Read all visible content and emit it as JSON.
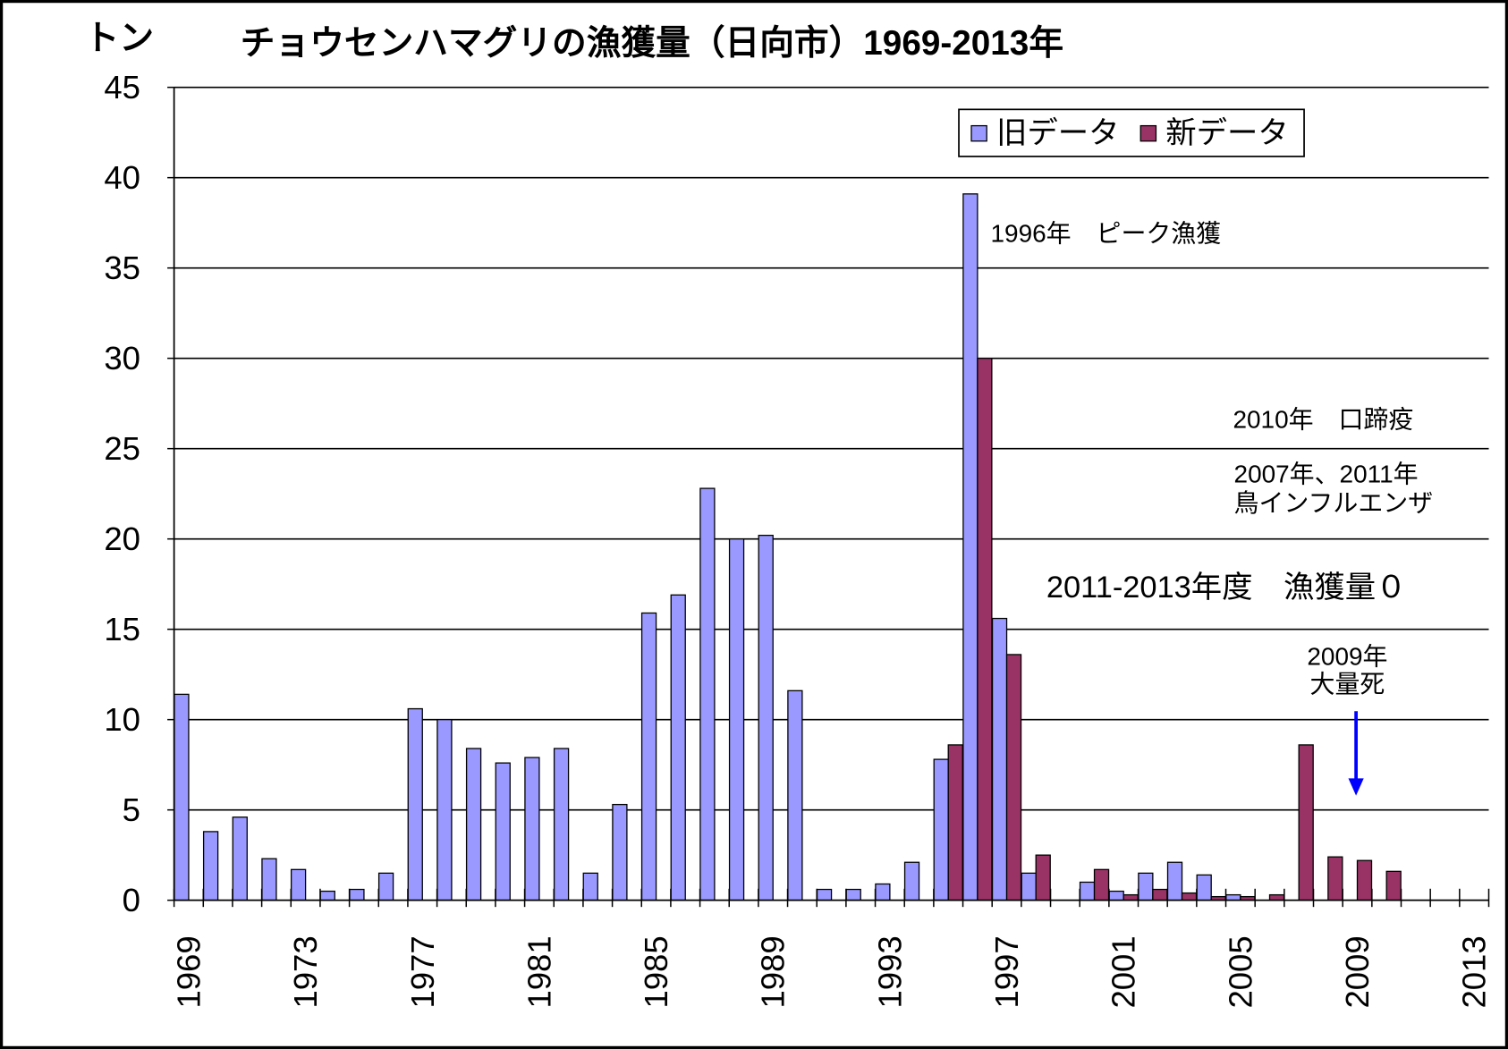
{
  "chart_data": {
    "type": "bar",
    "title": "チョウセンハマグリの漁獲量（日向市）1969-2013年",
    "ylabel": "トン",
    "xlabel": "",
    "ylim": [
      0,
      45
    ],
    "y_ticks": [
      0,
      5,
      10,
      15,
      20,
      25,
      30,
      35,
      40,
      45
    ],
    "grid": true,
    "legend": {
      "position": "top-right"
    },
    "categories": [
      1969,
      1970,
      1971,
      1972,
      1973,
      1974,
      1975,
      1976,
      1977,
      1978,
      1979,
      1980,
      1981,
      1982,
      1983,
      1984,
      1985,
      1986,
      1987,
      1988,
      1989,
      1990,
      1991,
      1992,
      1993,
      1994,
      1995,
      1996,
      1997,
      1998,
      1999,
      2000,
      2001,
      2002,
      2003,
      2004,
      2005,
      2006,
      2007,
      2008,
      2009,
      2010,
      2011,
      2012,
      2013
    ],
    "x_tick_labels": [
      "1969",
      "1973",
      "1977",
      "1981",
      "1985",
      "1989",
      "1993",
      "1997",
      "2001",
      "2005",
      "2009",
      "2013"
    ],
    "series": [
      {
        "name": "旧データ",
        "color": "#9999FF",
        "values": [
          11.4,
          3.8,
          4.6,
          2.3,
          1.7,
          0.5,
          0.6,
          1.5,
          10.6,
          10.0,
          8.4,
          7.6,
          7.9,
          8.4,
          1.5,
          5.3,
          15.9,
          16.9,
          22.8,
          20.0,
          20.2,
          11.6,
          0.6,
          0.6,
          0.9,
          2.1,
          7.8,
          39.1,
          15.6,
          1.5,
          null,
          1.0,
          0.5,
          1.5,
          2.1,
          1.4,
          0.3,
          null,
          null,
          null,
          null,
          null,
          null,
          null,
          null
        ]
      },
      {
        "name": "新データ",
        "color": "#993366",
        "values": [
          null,
          null,
          null,
          null,
          null,
          null,
          null,
          null,
          null,
          null,
          null,
          null,
          null,
          null,
          null,
          null,
          null,
          null,
          null,
          null,
          null,
          null,
          null,
          null,
          null,
          null,
          8.6,
          30.0,
          13.6,
          2.5,
          null,
          1.7,
          0.3,
          0.6,
          0.4,
          0.2,
          0.2,
          0.3,
          8.6,
          2.4,
          2.2,
          1.6,
          0,
          0,
          0
        ]
      }
    ],
    "annotations": [
      {
        "text": "1996年　ピーク漁獲",
        "color": "#000080"
      },
      {
        "text": "2010年　口蹄疫",
        "color": "#FF00FF"
      },
      {
        "lines": [
          "2007年、2011年",
          "鳥インフルエンザ"
        ],
        "color": "#FF00FF"
      },
      {
        "text": "2011-2013年度　漁獲量０",
        "color": "#FF0000"
      },
      {
        "lines": [
          "2009年",
          "大量死"
        ],
        "color": "#FF0000",
        "arrow_color": "#0000FF"
      }
    ]
  }
}
